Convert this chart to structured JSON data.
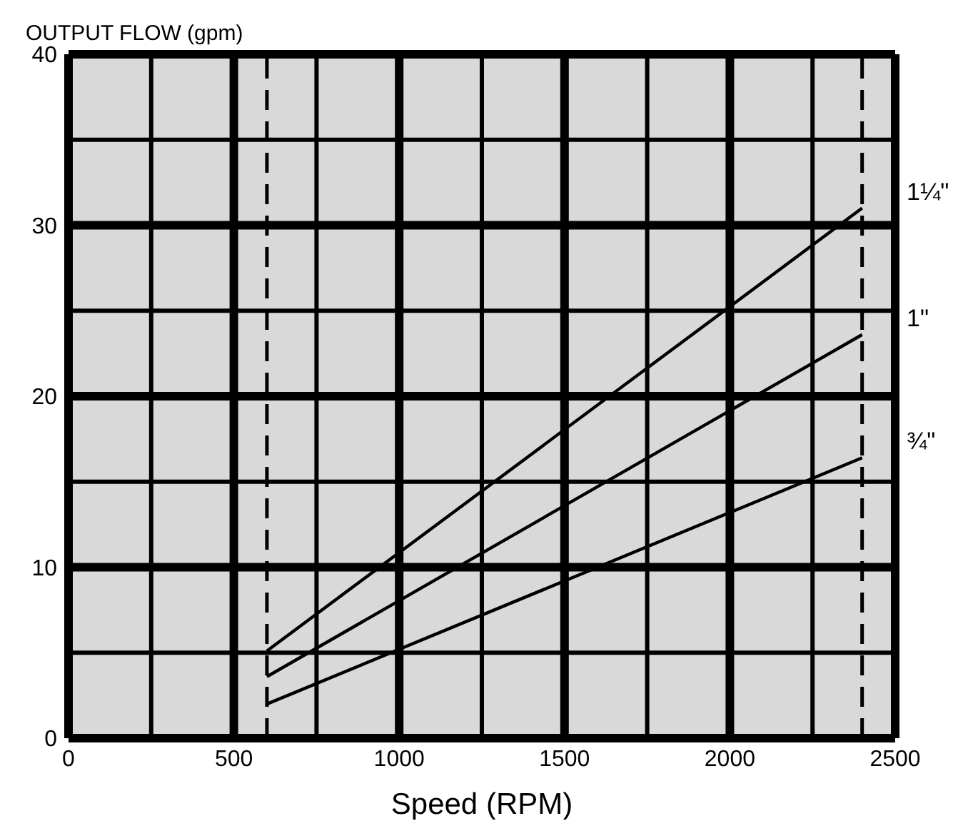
{
  "chart_data": {
    "type": "line",
    "xlabel": "Speed (RPM)",
    "ylabel": "OUTPUT FLOW (gpm)",
    "xlim": [
      0,
      2500
    ],
    "ylim": [
      0,
      40
    ],
    "xticks": [
      0,
      {
        "value": 250,
        "label": null
      },
      500,
      {
        "value": 750,
        "label": null
      },
      1000,
      {
        "value": 1250,
        "label": null
      },
      1500,
      {
        "value": 1750,
        "label": null
      },
      2000,
      {
        "value": 2250,
        "label": null
      },
      2500
    ],
    "yticks": [
      0,
      {
        "value": 5,
        "label": null
      },
      10,
      {
        "value": 15,
        "label": null
      },
      20,
      {
        "value": 25,
        "label": null
      },
      30,
      {
        "value": 35,
        "label": null
      },
      40
    ],
    "x": [
      600,
      2400
    ],
    "grid": true,
    "legend": false,
    "marker": "none",
    "line_style": "solid",
    "series": [
      {
        "name": "1¼\"",
        "color": "#000000",
        "values": [
          5.1,
          31.0
        ]
      },
      {
        "name": "1\"",
        "color": "#000000",
        "values": [
          3.6,
          23.6
        ]
      },
      {
        "name": "¾\"",
        "color": "#000000",
        "values": [
          2.0,
          16.4
        ]
      }
    ],
    "ref_lines": [
      {
        "axis": "x",
        "value": 600,
        "line_style": "dashed",
        "color": "#000000"
      },
      {
        "axis": "x",
        "value": 2400,
        "line_style": "dashed",
        "color": "#000000"
      }
    ]
  }
}
